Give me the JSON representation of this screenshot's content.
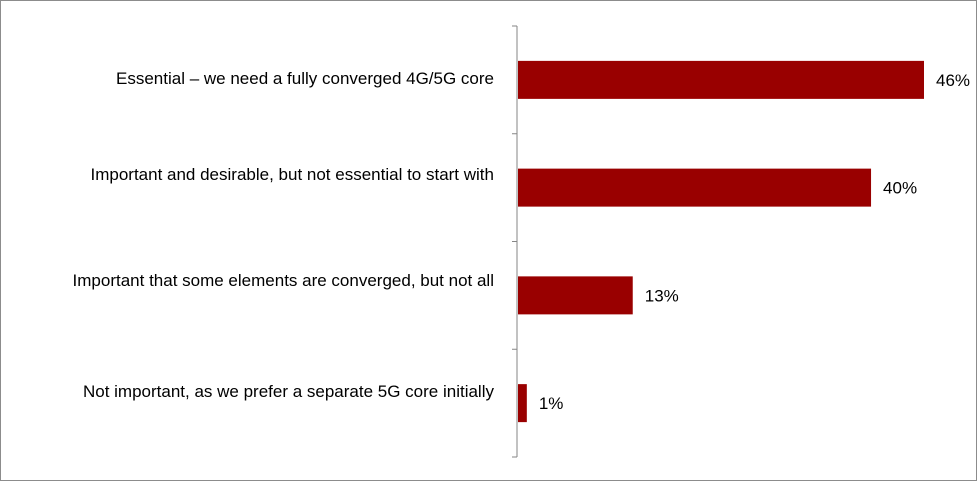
{
  "chart_data": {
    "type": "bar",
    "orientation": "horizontal",
    "categories": [
      "Essential – we need a fully converged 4G/5G core",
      "Important and desirable, but not essential to start with",
      "Important that some elements are converged, but not all",
      "Not important, as we prefer a separate 5G core initially"
    ],
    "values": [
      46,
      40,
      13,
      1
    ],
    "value_labels": [
      "46%",
      "40%",
      "13%",
      "1%"
    ],
    "unit": "%",
    "xlim": [
      0,
      50
    ],
    "bar_color": "#990000",
    "axis_color": "#868686",
    "grid": false,
    "legend": "none"
  }
}
